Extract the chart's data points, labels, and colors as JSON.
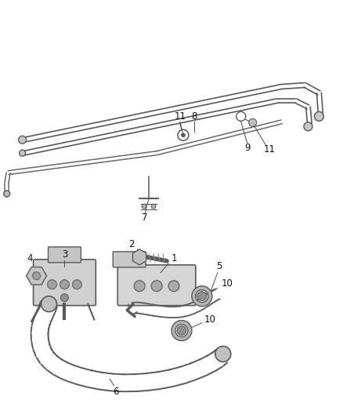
{
  "background_color": "#ffffff",
  "line_color": "#4a4a4a",
  "label_color": "#111111",
  "figsize": [
    4.38,
    5.33
  ],
  "dpi": 100,
  "tube_color": "#5a5a5a",
  "component_color": "#d0d0d0",
  "dark_color": "#3a3a3a"
}
